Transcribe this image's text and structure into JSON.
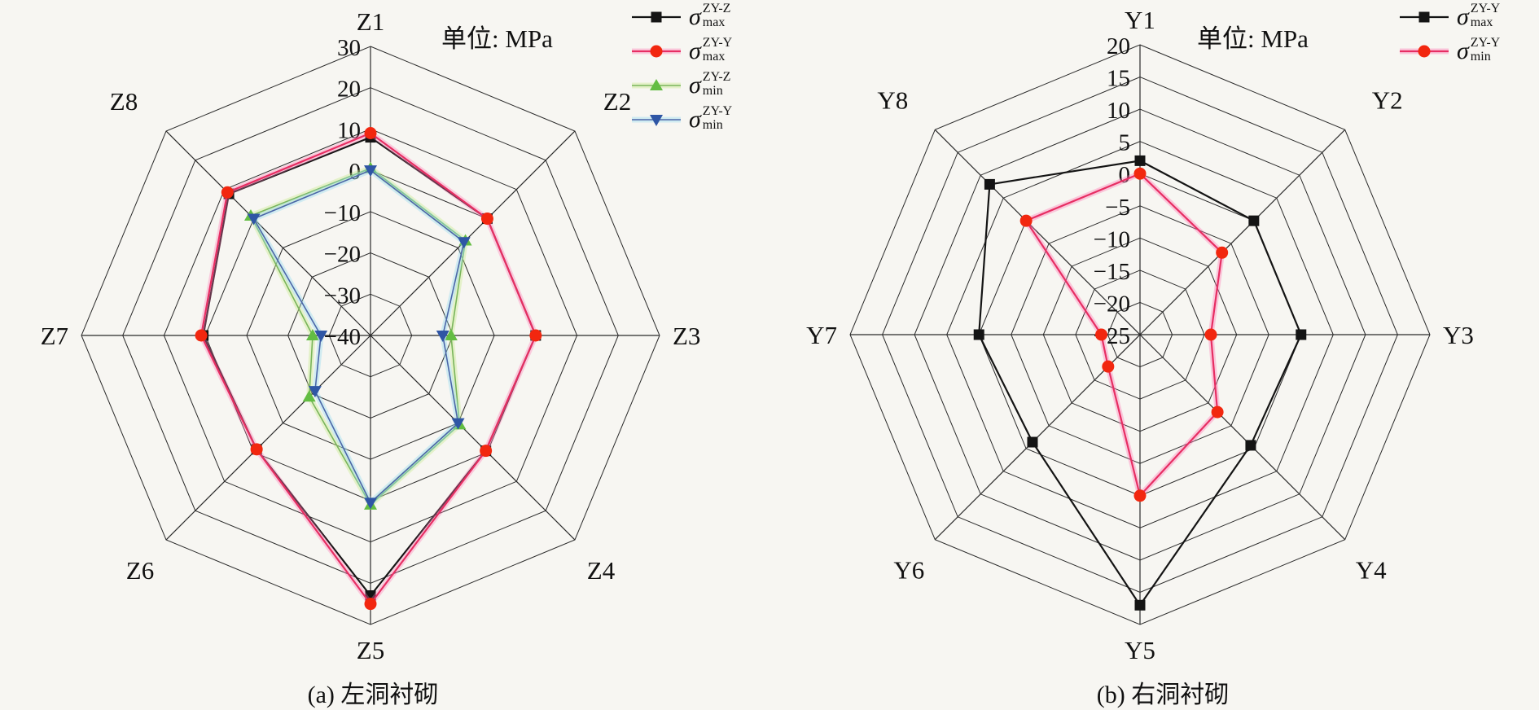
{
  "figure": {
    "background": "#f7f6f2",
    "grid_color": "#2a2a2a",
    "text_color": "#111111"
  },
  "chart_data": [
    {
      "type": "radar",
      "title": "单位: MPa",
      "caption": "(a) 左洞衬砌",
      "categories": [
        "Z1",
        "Z2",
        "Z3",
        "Z4",
        "Z5",
        "Z6",
        "Z7",
        "Z8"
      ],
      "rmin": -40,
      "rmax": 30,
      "rstep": 10,
      "tick_labels": [
        "30",
        "20",
        "10",
        "0",
        "−10",
        "−20",
        "−30",
        "−40"
      ],
      "grid": true,
      "legend_position": "top-right",
      "series": [
        {
          "name": "sigma-max-ZY-Z",
          "sigma": "σ",
          "sup": "ZY-Z",
          "sub": "max",
          "marker": "square",
          "marker_color": "#141414",
          "line_color": "#141414",
          "glow_color": "rgba(0,0,0,0)",
          "line_width": 2.2,
          "values": [
            8,
            0,
            0,
            -0.5,
            23,
            -1,
            0.5,
            8.5
          ]
        },
        {
          "name": "sigma-max-ZY-Y",
          "sigma": "σ",
          "sup": "ZY-Y",
          "sub": "max",
          "marker": "circle",
          "marker_color": "#f2270f",
          "line_color": "#e72e63",
          "glow_color": "rgba(255,120,180,0.35)",
          "line_width": 2.2,
          "values": [
            9,
            0,
            0,
            -0.5,
            25,
            -1,
            1,
            9
          ]
        },
        {
          "name": "sigma-min-ZY-Z",
          "sigma": "σ",
          "sup": "ZY-Z",
          "sub": "min",
          "marker": "triangle-up",
          "marker_color": "#63bd43",
          "line_color": "#79b55a",
          "glow_color": "rgba(200,235,140,0.40)",
          "line_width": 1.6,
          "values": [
            0.5,
            -7.5,
            -20.5,
            -9.5,
            1,
            -19,
            -26,
            1
          ]
        },
        {
          "name": "sigma-min-ZY-Y",
          "sigma": "σ",
          "sup": "ZY-Y",
          "sub": "min",
          "marker": "triangle-down",
          "marker_color": "#2f56a5",
          "line_color": "#4a66a8",
          "glow_color": "rgba(150,220,240,0.40)",
          "line_width": 1.6,
          "values": [
            0,
            -8,
            -22.5,
            -10,
            0.5,
            -21,
            -28,
            0
          ]
        }
      ]
    },
    {
      "type": "radar",
      "title": "单位: MPa",
      "caption": "(b) 右洞衬砌",
      "categories": [
        "Y1",
        "Y2",
        "Y3",
        "Y4",
        "Y5",
        "Y6",
        "Y7",
        "Y8"
      ],
      "rmin": -25,
      "rmax": 20,
      "rstep": 5,
      "tick_labels": [
        "20",
        "15",
        "10",
        "5",
        "0",
        "−5",
        "−10",
        "−15",
        "−20",
        "−25"
      ],
      "grid": true,
      "legend_position": "top-right",
      "series": [
        {
          "name": "sigma-max-ZY-Y",
          "sigma": "σ",
          "sup": "ZY-Y",
          "sub": "max",
          "marker": "square",
          "marker_color": "#141414",
          "line_color": "#141414",
          "glow_color": "rgba(0,0,0,0)",
          "line_width": 2.2,
          "values": [
            2,
            0,
            0,
            -0.7,
            17,
            -1.4,
            0,
            8
          ]
        },
        {
          "name": "sigma-min-ZY-Y",
          "sigma": "σ",
          "sup": "ZY-Y",
          "sub": "min",
          "marker": "circle",
          "marker_color": "#f2270f",
          "line_color": "#e72e63",
          "glow_color": "rgba(255,120,180,0.38)",
          "line_width": 2.2,
          "values": [
            0,
            -7,
            -14,
            -8,
            0,
            -18,
            -19,
            0
          ]
        }
      ]
    }
  ]
}
